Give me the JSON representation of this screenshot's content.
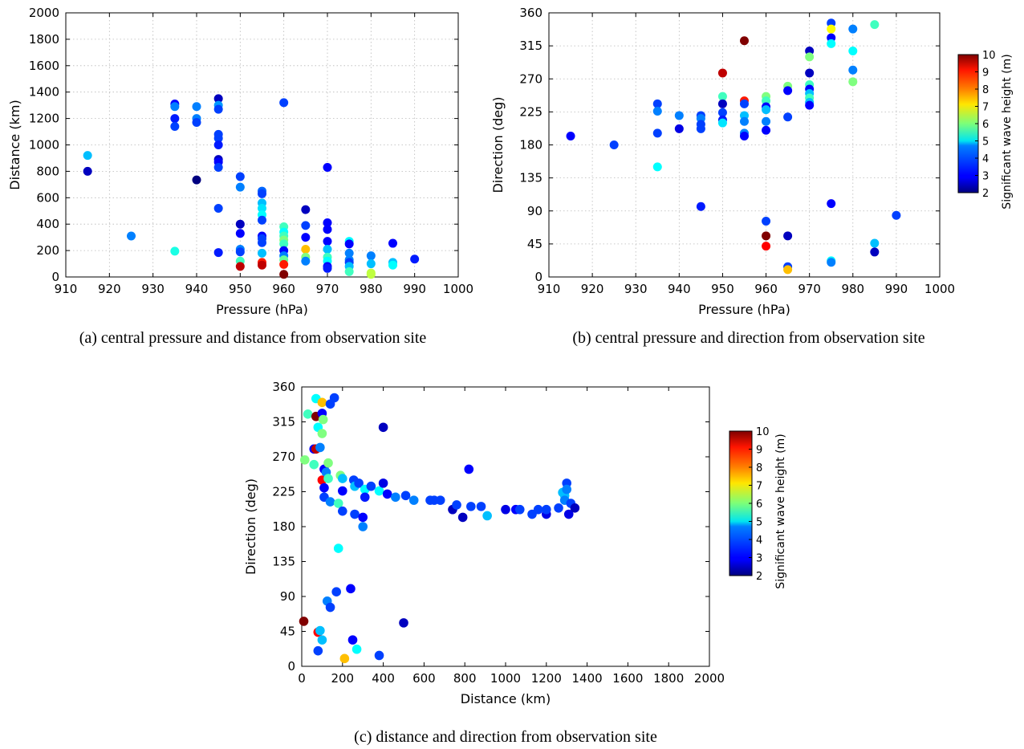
{
  "chart_data": [
    {
      "id": "a",
      "type": "scatter",
      "xlabel": "Pressure (hPa)",
      "ylabel": "Distance (km)",
      "xlim": [
        910,
        1000
      ],
      "ylim": [
        0,
        2000
      ],
      "xticks": [
        910,
        920,
        930,
        940,
        950,
        960,
        970,
        980,
        990,
        "1000"
      ],
      "yticks": [
        0,
        200,
        400,
        600,
        800,
        1000,
        1200,
        1400,
        1600,
        1800,
        2000
      ],
      "grid": true,
      "caption": "(a) central pressure and distance from observation site",
      "colorbar": false,
      "points": [
        [
          915,
          920,
          4.5
        ],
        [
          915,
          800,
          2.5
        ],
        [
          925,
          310,
          4.0
        ],
        [
          935,
          1310,
          3.0
        ],
        [
          935,
          1290,
          4.0
        ],
        [
          935,
          1200,
          3.2
        ],
        [
          935,
          1140,
          3.5
        ],
        [
          935,
          195,
          5.2
        ],
        [
          940,
          1290,
          4.0
        ],
        [
          940,
          1200,
          4.0
        ],
        [
          940,
          1170,
          3.5
        ],
        [
          940,
          735,
          2.0
        ],
        [
          945,
          1350,
          2.5
        ],
        [
          945,
          1300,
          4.2
        ],
        [
          945,
          1270,
          3.5
        ],
        [
          945,
          1080,
          3.5
        ],
        [
          945,
          1050,
          3.5
        ],
        [
          945,
          1000,
          3.2
        ],
        [
          945,
          890,
          2.5
        ],
        [
          945,
          870,
          3.0
        ],
        [
          945,
          830,
          3.5
        ],
        [
          945,
          520,
          3.5
        ],
        [
          945,
          185,
          3.2
        ],
        [
          950,
          760,
          3.5
        ],
        [
          950,
          680,
          4.0
        ],
        [
          950,
          400,
          2.5
        ],
        [
          950,
          330,
          3.0
        ],
        [
          950,
          210,
          4.0
        ],
        [
          950,
          190,
          3.5
        ],
        [
          950,
          120,
          5.5
        ],
        [
          950,
          80,
          9.5
        ],
        [
          955,
          650,
          3.8
        ],
        [
          955,
          630,
          3.5
        ],
        [
          955,
          560,
          4.5
        ],
        [
          955,
          520,
          4.8
        ],
        [
          955,
          470,
          5.0
        ],
        [
          955,
          430,
          3.5
        ],
        [
          955,
          310,
          3.0
        ],
        [
          955,
          290,
          3.5
        ],
        [
          955,
          260,
          3.5
        ],
        [
          955,
          180,
          4.5
        ],
        [
          955,
          110,
          8.8
        ],
        [
          955,
          90,
          9.5
        ],
        [
          960,
          1320,
          3.5
        ],
        [
          960,
          380,
          5.5
        ],
        [
          960,
          340,
          5.0
        ],
        [
          960,
          310,
          5.5
        ],
        [
          960,
          280,
          6.0
        ],
        [
          960,
          250,
          5.5
        ],
        [
          960,
          200,
          3.0
        ],
        [
          960,
          160,
          4.0
        ],
        [
          960,
          130,
          5.8
        ],
        [
          960,
          95,
          8.8
        ],
        [
          960,
          20,
          10.0
        ],
        [
          965,
          510,
          2.5
        ],
        [
          965,
          390,
          3.5
        ],
        [
          965,
          300,
          3.0
        ],
        [
          965,
          210,
          7.5
        ],
        [
          965,
          150,
          6.0
        ],
        [
          965,
          120,
          4.0
        ],
        [
          970,
          830,
          3.0
        ],
        [
          970,
          410,
          3.0
        ],
        [
          970,
          360,
          3.0
        ],
        [
          970,
          270,
          3.0
        ],
        [
          970,
          210,
          4.5
        ],
        [
          970,
          150,
          5.5
        ],
        [
          970,
          120,
          5.0
        ],
        [
          970,
          80,
          3.0
        ],
        [
          970,
          65,
          3.2
        ],
        [
          975,
          270,
          5.0
        ],
        [
          975,
          250,
          3.0
        ],
        [
          975,
          180,
          4.0
        ],
        [
          975,
          130,
          4.0
        ],
        [
          975,
          110,
          3.5
        ],
        [
          975,
          80,
          4.5
        ],
        [
          975,
          40,
          5.5
        ],
        [
          980,
          160,
          4.0
        ],
        [
          980,
          100,
          4.5
        ],
        [
          980,
          30,
          6.5
        ],
        [
          980,
          20,
          6.5
        ],
        [
          985,
          255,
          3.0
        ],
        [
          985,
          110,
          4.5
        ],
        [
          985,
          90,
          5.0
        ],
        [
          990,
          135,
          3.2
        ]
      ]
    },
    {
      "id": "b",
      "type": "scatter",
      "xlabel": "Pressure (hPa)",
      "ylabel": "Direction (deg)",
      "xlim": [
        910,
        1000
      ],
      "ylim": [
        0,
        360
      ],
      "xticks": [
        910,
        920,
        930,
        940,
        950,
        960,
        970,
        980,
        990,
        "1000"
      ],
      "yticks": [
        0,
        45,
        90,
        135,
        180,
        225,
        270,
        315,
        360
      ],
      "grid": true,
      "caption": "(b) central pressure and direction from observation site",
      "colorbar": true,
      "points": [
        [
          915,
          192,
          3.0
        ],
        [
          925,
          180,
          3.5
        ],
        [
          935,
          236,
          3.5
        ],
        [
          935,
          226,
          4.0
        ],
        [
          935,
          196,
          3.5
        ],
        [
          935,
          150,
          5.0
        ],
        [
          940,
          220,
          4.0
        ],
        [
          940,
          202,
          2.8
        ],
        [
          945,
          220,
          3.5
        ],
        [
          945,
          216,
          4.0
        ],
        [
          945,
          208,
          3.5
        ],
        [
          945,
          202,
          3.5
        ],
        [
          945,
          96,
          3.2
        ],
        [
          950,
          278,
          9.5
        ],
        [
          950,
          246,
          5.5
        ],
        [
          950,
          236,
          2.5
        ],
        [
          950,
          224,
          3.5
        ],
        [
          950,
          214,
          3.2
        ],
        [
          950,
          210,
          4.8
        ],
        [
          955,
          322,
          10.0
        ],
        [
          955,
          240,
          8.8
        ],
        [
          955,
          236,
          3.5
        ],
        [
          955,
          220,
          4.5
        ],
        [
          955,
          212,
          4.0
        ],
        [
          955,
          196,
          4.0
        ],
        [
          955,
          192,
          3.0
        ],
        [
          960,
          246,
          6.0
        ],
        [
          960,
          240,
          5.5
        ],
        [
          960,
          232,
          3.0
        ],
        [
          960,
          228,
          4.5
        ],
        [
          960,
          212,
          4.0
        ],
        [
          960,
          200,
          3.0
        ],
        [
          960,
          76,
          3.5
        ],
        [
          960,
          56,
          10.0
        ],
        [
          960,
          42,
          9.0
        ],
        [
          965,
          260,
          6.0
        ],
        [
          965,
          254,
          3.0
        ],
        [
          965,
          218,
          3.5
        ],
        [
          965,
          56,
          2.5
        ],
        [
          965,
          14,
          3.5
        ],
        [
          965,
          10,
          7.5
        ],
        [
          970,
          308,
          2.5
        ],
        [
          970,
          300,
          6.0
        ],
        [
          970,
          278,
          2.5
        ],
        [
          970,
          262,
          5.5
        ],
        [
          970,
          256,
          3.0
        ],
        [
          970,
          250,
          4.5
        ],
        [
          970,
          244,
          5.5
        ],
        [
          970,
          238,
          4.5
        ],
        [
          970,
          234,
          3.0
        ],
        [
          975,
          346,
          3.5
        ],
        [
          975,
          338,
          7.0
        ],
        [
          975,
          326,
          3.0
        ],
        [
          975,
          318,
          5.0
        ],
        [
          975,
          100,
          3.0
        ],
        [
          975,
          22,
          5.0
        ],
        [
          975,
          20,
          4.0
        ],
        [
          980,
          338,
          4.0
        ],
        [
          980,
          308,
          5.0
        ],
        [
          980,
          282,
          4.0
        ],
        [
          980,
          266,
          6.0
        ],
        [
          985,
          344,
          5.5
        ],
        [
          985,
          46,
          4.5
        ],
        [
          985,
          34,
          2.5
        ],
        [
          990,
          84,
          3.5
        ]
      ]
    },
    {
      "id": "c",
      "type": "scatter",
      "xlabel": "Distance (km)",
      "ylabel": "Direction (deg)",
      "xlim": [
        0,
        2000
      ],
      "ylim": [
        0,
        360
      ],
      "xticks": [
        0,
        200,
        400,
        600,
        800,
        1000,
        1200,
        1400,
        1600,
        1800,
        2000
      ],
      "yticks": [
        0,
        45,
        90,
        135,
        180,
        225,
        270,
        315,
        360
      ],
      "grid": false,
      "caption": "(c) distance and direction from observation site",
      "colorbar": true,
      "points": [
        [
          10,
          58,
          10.0
        ],
        [
          15,
          266,
          6.0
        ],
        [
          30,
          325,
          5.5
        ],
        [
          60,
          260,
          5.5
        ],
        [
          60,
          280,
          3.0
        ],
        [
          70,
          280,
          9.5
        ],
        [
          70,
          345,
          5.0
        ],
        [
          70,
          322,
          10.0
        ],
        [
          80,
          308,
          5.0
        ],
        [
          80,
          44,
          9.0
        ],
        [
          80,
          20,
          3.5
        ],
        [
          90,
          46,
          4.5
        ],
        [
          90,
          282,
          4.0
        ],
        [
          100,
          326,
          3.0
        ],
        [
          100,
          300,
          6.0
        ],
        [
          100,
          34,
          4.5
        ],
        [
          100,
          240,
          9.0
        ],
        [
          100,
          340,
          7.5
        ],
        [
          105,
          318,
          6.0
        ],
        [
          110,
          254,
          3.0
        ],
        [
          110,
          230,
          3.0
        ],
        [
          110,
          218,
          3.5
        ],
        [
          120,
          250,
          4.0
        ],
        [
          125,
          84,
          4.0
        ],
        [
          130,
          262,
          6.0
        ],
        [
          130,
          242,
          5.5
        ],
        [
          140,
          338,
          3.5
        ],
        [
          140,
          76,
          3.5
        ],
        [
          140,
          212,
          4.0
        ],
        [
          160,
          346,
          3.5
        ],
        [
          170,
          96,
          3.5
        ],
        [
          180,
          210,
          5.5
        ],
        [
          180,
          152,
          5.0
        ],
        [
          190,
          246,
          6.0
        ],
        [
          200,
          200,
          3.5
        ],
        [
          200,
          226,
          3.0
        ],
        [
          200,
          242,
          4.5
        ],
        [
          210,
          10,
          7.5
        ],
        [
          240,
          100,
          3.0
        ],
        [
          250,
          34,
          3.0
        ],
        [
          255,
          240,
          3.5
        ],
        [
          260,
          196,
          3.5
        ],
        [
          260,
          232,
          4.5
        ],
        [
          270,
          22,
          5.0
        ],
        [
          280,
          236,
          3.5
        ],
        [
          300,
          192,
          3.0
        ],
        [
          300,
          180,
          4.0
        ],
        [
          310,
          228,
          5.0
        ],
        [
          310,
          218,
          3.2
        ],
        [
          340,
          232,
          3.5
        ],
        [
          380,
          14,
          3.5
        ],
        [
          380,
          226,
          5.0
        ],
        [
          400,
          236,
          2.8
        ],
        [
          400,
          308,
          2.5
        ],
        [
          420,
          222,
          3.0
        ],
        [
          460,
          218,
          4.0
        ],
        [
          500,
          56,
          2.5
        ],
        [
          510,
          220,
          3.5
        ],
        [
          550,
          214,
          4.0
        ],
        [
          630,
          214,
          3.5
        ],
        [
          650,
          214,
          3.5
        ],
        [
          680,
          214,
          3.5
        ],
        [
          740,
          202,
          2.5
        ],
        [
          760,
          208,
          3.5
        ],
        [
          790,
          192,
          2.5
        ],
        [
          820,
          254,
          3.0
        ],
        [
          830,
          206,
          3.5
        ],
        [
          880,
          206,
          3.5
        ],
        [
          910,
          194,
          4.5
        ],
        [
          1000,
          202,
          2.8
        ],
        [
          1050,
          202,
          3.0
        ],
        [
          1070,
          202,
          3.5
        ],
        [
          1130,
          196,
          3.5
        ],
        [
          1160,
          202,
          3.5
        ],
        [
          1200,
          196,
          2.8
        ],
        [
          1200,
          202,
          3.5
        ],
        [
          1260,
          204,
          3.5
        ],
        [
          1280,
          224,
          4.5
        ],
        [
          1290,
          220,
          4.5
        ],
        [
          1290,
          214,
          4.0
        ],
        [
          1300,
          236,
          3.5
        ],
        [
          1300,
          228,
          4.0
        ],
        [
          1310,
          196,
          2.8
        ],
        [
          1320,
          210,
          3.5
        ],
        [
          1340,
          204,
          2.5
        ]
      ]
    }
  ],
  "colorbar": {
    "label": "Significant wave height (m)",
    "min": 2,
    "max": 10,
    "ticks": [
      2,
      3,
      4,
      5,
      6,
      7,
      8,
      9,
      10
    ]
  }
}
